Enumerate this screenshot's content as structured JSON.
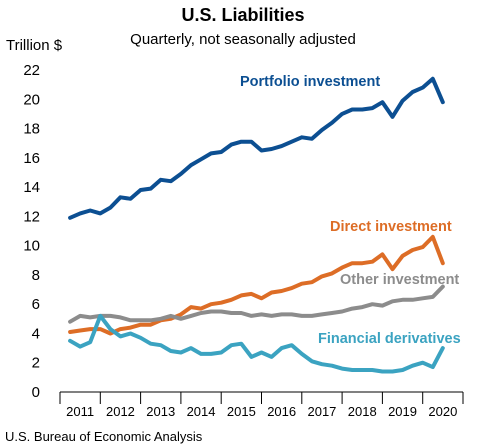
{
  "chart_data": {
    "type": "line",
    "title": "U.S. Liabilities",
    "subtitle": "Quarterly, not seasonally adjusted",
    "ylabel": "Trillion $",
    "source": "U.S. Bureau of Economic Analysis",
    "ylim": [
      0,
      22
    ],
    "yticks": [
      0,
      2,
      4,
      6,
      8,
      10,
      12,
      14,
      16,
      18,
      20,
      22
    ],
    "xlim": [
      2010.5,
      2020.5
    ],
    "xtick_labels": [
      "2011",
      "2012",
      "2013",
      "2014",
      "2015",
      "2016",
      "2017",
      "2018",
      "2019",
      "2020"
    ],
    "grid": false,
    "x": [
      2010.75,
      2011.0,
      2011.25,
      2011.5,
      2011.75,
      2012.0,
      2012.25,
      2012.5,
      2012.75,
      2013.0,
      2013.25,
      2013.5,
      2013.75,
      2014.0,
      2014.25,
      2014.5,
      2014.75,
      2015.0,
      2015.25,
      2015.5,
      2015.75,
      2016.0,
      2016.25,
      2016.5,
      2016.75,
      2017.0,
      2017.25,
      2017.5,
      2017.75,
      2018.0,
      2018.25,
      2018.5,
      2018.75,
      2019.0,
      2019.25,
      2019.5,
      2019.75,
      2020.0
    ],
    "series": [
      {
        "name": "Portfolio investment",
        "color": "#0c4f92",
        "values": [
          11.9,
          12.2,
          12.4,
          12.2,
          12.6,
          13.3,
          13.2,
          13.8,
          13.9,
          14.5,
          14.4,
          14.9,
          15.5,
          15.9,
          16.3,
          16.4,
          16.9,
          17.1,
          17.1,
          16.5,
          16.6,
          16.8,
          17.1,
          17.4,
          17.3,
          17.9,
          18.4,
          19.0,
          19.3,
          19.3,
          19.4,
          19.8,
          18.8,
          19.9,
          20.5,
          20.8,
          21.4,
          19.8
        ]
      },
      {
        "name": "Direct investment",
        "color": "#dd6d26",
        "values": [
          4.1,
          4.2,
          4.3,
          4.3,
          4.0,
          4.3,
          4.4,
          4.6,
          4.6,
          4.9,
          5.0,
          5.3,
          5.8,
          5.7,
          6.0,
          6.1,
          6.3,
          6.6,
          6.7,
          6.4,
          6.8,
          6.9,
          7.1,
          7.4,
          7.5,
          7.9,
          8.1,
          8.5,
          8.8,
          8.8,
          8.9,
          9.4,
          8.4,
          9.3,
          9.7,
          9.9,
          10.6,
          8.8
        ]
      },
      {
        "name": "Other investment",
        "color": "#8c8c8c",
        "values": [
          4.8,
          5.2,
          5.1,
          5.2,
          5.2,
          5.1,
          4.9,
          4.9,
          4.9,
          5.0,
          5.2,
          5.0,
          5.2,
          5.4,
          5.5,
          5.5,
          5.4,
          5.4,
          5.2,
          5.3,
          5.2,
          5.3,
          5.3,
          5.2,
          5.2,
          5.3,
          5.4,
          5.5,
          5.7,
          5.8,
          6.0,
          5.9,
          6.2,
          6.3,
          6.3,
          6.4,
          6.5,
          7.2
        ]
      },
      {
        "name": "Financial derivatives",
        "color": "#3ba3c1",
        "values": [
          3.5,
          3.1,
          3.4,
          5.2,
          4.3,
          3.8,
          4.0,
          3.7,
          3.3,
          3.2,
          2.8,
          2.7,
          3.0,
          2.6,
          2.6,
          2.7,
          3.2,
          3.3,
          2.4,
          2.7,
          2.4,
          3.0,
          3.2,
          2.6,
          2.1,
          1.9,
          1.8,
          1.6,
          1.5,
          1.5,
          1.5,
          1.4,
          1.4,
          1.5,
          1.8,
          2.0,
          1.7,
          3.0
        ]
      }
    ]
  },
  "series_labels": [
    {
      "text": "Portfolio investment",
      "color": "#0c4f92"
    },
    {
      "text": "Direct investment",
      "color": "#dd6d26"
    },
    {
      "text": "Other investment",
      "color": "#8c8c8c"
    },
    {
      "text": "Financial derivatives",
      "color": "#3ba3c1"
    }
  ]
}
